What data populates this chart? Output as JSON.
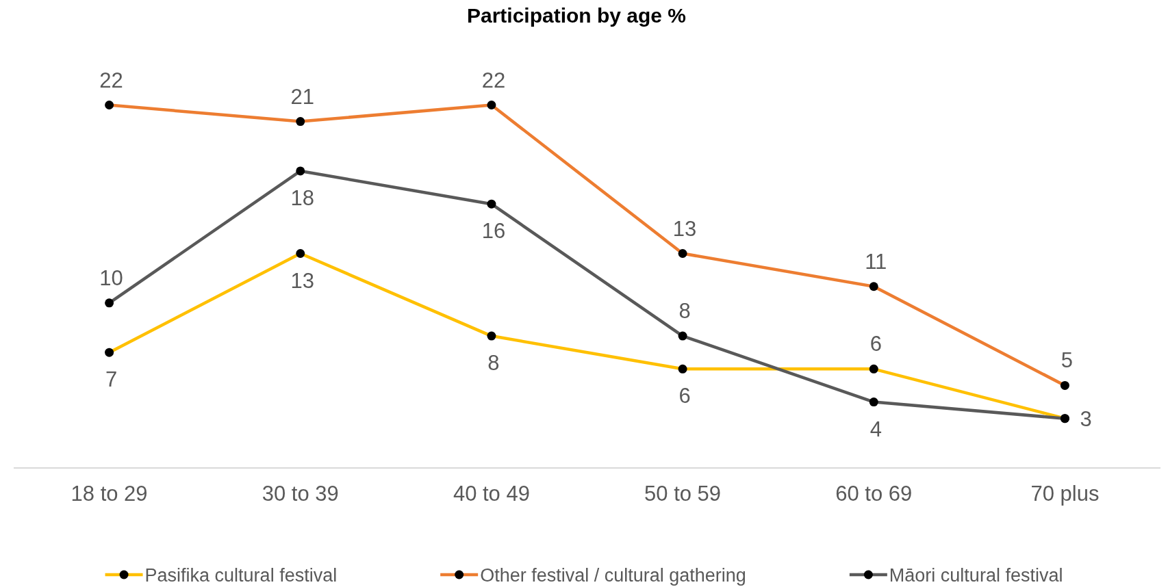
{
  "chart_data": {
    "type": "line",
    "title": "Participation by age %",
    "categories": [
      "18 to 29",
      "30 to 39",
      "40 to 49",
      "50 to 59",
      "60 to 69",
      "70 plus"
    ],
    "series": [
      {
        "name": "Pasifika cultural festival",
        "color": "#ffc000",
        "values": [
          7,
          13,
          8,
          6,
          6,
          3
        ],
        "value_labels": [
          "7",
          "13",
          "8",
          "6",
          "6",
          null
        ]
      },
      {
        "name": "Other festival / cultural gathering",
        "color": "#ed7d31",
        "values": [
          22,
          21,
          22,
          13,
          11,
          5
        ],
        "value_labels": [
          "22",
          "21",
          "22",
          "13",
          "11",
          "5"
        ]
      },
      {
        "name": "Māori cultural festival",
        "color": "#595959",
        "values": [
          10,
          18,
          16,
          8,
          4,
          3
        ],
        "value_labels": [
          "10",
          "18",
          "16",
          "8",
          "4",
          "3"
        ]
      }
    ],
    "legend": "bottom",
    "marker": "circle",
    "line_style": "solid",
    "tick_labels": "x"
  }
}
